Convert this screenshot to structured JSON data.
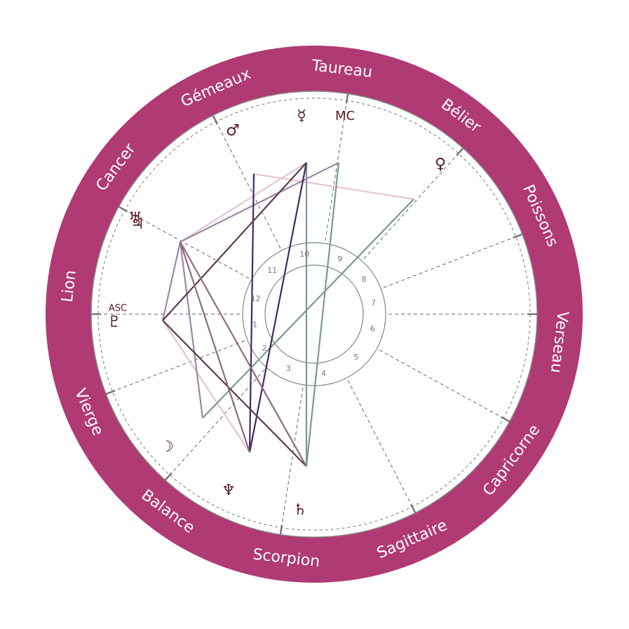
{
  "signs": [
    "Taureau",
    "Gémeaux",
    "Cancer",
    "Lion",
    "Vierge",
    "Balance",
    "Scorpion",
    "Sagittaire",
    "Capricorne",
    "Verseau",
    "Poissons",
    "Bélier"
  ],
  "houses": [
    "1",
    "2",
    "3",
    "4",
    "5",
    "6",
    "7",
    "8",
    "9",
    "10",
    "11",
    "12"
  ],
  "angles": {
    "asc": "ASC",
    "mc": "MC"
  },
  "planets": {
    "mercury": "☿",
    "mars": "♂",
    "venus": "♀",
    "uranus": "♅",
    "jupiter": "♃",
    "pluto": "♇",
    "moon": "☽",
    "neptune": "♆",
    "saturn": "♄"
  }
}
